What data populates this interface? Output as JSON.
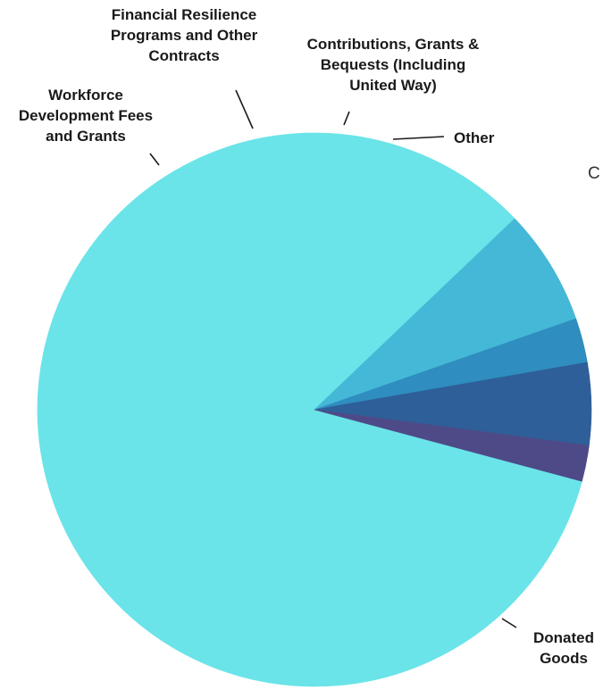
{
  "chart_data": {
    "type": "pie",
    "slices": [
      {
        "label": "Donated Goods",
        "value": 83.7,
        "color": "#6ae4e8"
      },
      {
        "label": "Workforce Development Fees and Grants",
        "value": 6.8,
        "color": "#44b8d6"
      },
      {
        "label": "Financial Resilience Programs and Other Contracts",
        "value": 2.6,
        "color": "#2f8dbf"
      },
      {
        "label": "Contributions, Grants & Bequests (Including United Way)",
        "value": 4.8,
        "color": "#2e5f98"
      },
      {
        "label": "Other",
        "value": 2.1,
        "color": "#4e4a88"
      }
    ],
    "slice_label_lines": [
      [
        "Donated",
        "Goods"
      ],
      [
        "Workforce",
        "Development Fees",
        "and Grants"
      ],
      [
        "Financial Resilience",
        "Programs and Other",
        "Contracts"
      ],
      [
        "Contributions, Grants &",
        "Bequests (Including",
        "United Way)"
      ],
      [
        "Other"
      ]
    ],
    "partial_text": "C"
  }
}
